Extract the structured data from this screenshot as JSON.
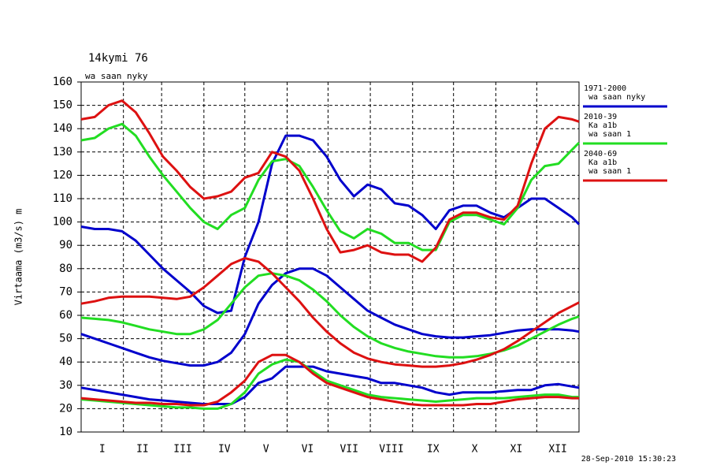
{
  "chart_data": {
    "type": "line",
    "title": "14kymi 76",
    "subtitle": "wa saan nyky",
    "y_label": "Virtaama (m3/s) m",
    "timestamp": "28-Sep-2010 15:30:23",
    "x": [
      0,
      10,
      20,
      30,
      40,
      50,
      60,
      70,
      80,
      90,
      100,
      110,
      120,
      130,
      140,
      150,
      160,
      170,
      180,
      190,
      200,
      210,
      220,
      230,
      240,
      250,
      260,
      270,
      280,
      290,
      300,
      310,
      320,
      330,
      340,
      350,
      360,
      365
    ],
    "xlim": [
      0,
      365
    ],
    "xticks": [
      0,
      31,
      59,
      90,
      120,
      151,
      181,
      212,
      243,
      273,
      304,
      334,
      365
    ],
    "month_labels": [
      "I",
      "II",
      "III",
      "IV",
      "V",
      "VI",
      "VII",
      "VIII",
      "IX",
      "X",
      "XI",
      "XII"
    ],
    "ylim": [
      10,
      160
    ],
    "yticks": [
      10,
      20,
      30,
      40,
      50,
      60,
      70,
      80,
      90,
      100,
      110,
      120,
      130,
      140,
      150,
      160
    ],
    "grid": true,
    "series": [
      {
        "name": [
          "1971-2000",
          "wa saan nyky"
        ],
        "color": "#0000cc",
        "values": [
          [
            98,
            97,
            97,
            96,
            92,
            86,
            80,
            75,
            70,
            64,
            61,
            62,
            85,
            100,
            125,
            137,
            137,
            135,
            128,
            118,
            111,
            116,
            114,
            108,
            107,
            103,
            97,
            105,
            107,
            107,
            104,
            102,
            106,
            110,
            110,
            106,
            102,
            99
          ],
          [
            52,
            50,
            48,
            46,
            44,
            42,
            40.5,
            39.5,
            38.5,
            38.5,
            40,
            44,
            52,
            65,
            73,
            78,
            80,
            80,
            77,
            72,
            67,
            62,
            59,
            56,
            54,
            52,
            51,
            50.5,
            50.5,
            51,
            51.5,
            52.5,
            53.5,
            54,
            54,
            54,
            53.5,
            53
          ],
          [
            29,
            28,
            27,
            26,
            25,
            24,
            23.5,
            23,
            22.5,
            22,
            22,
            22,
            25,
            31,
            33,
            38,
            38,
            38,
            36,
            35,
            34,
            33,
            31,
            31,
            30,
            29,
            27,
            26,
            27,
            27,
            27,
            27.5,
            28,
            28,
            30,
            30.5,
            29.5,
            29
          ]
        ]
      },
      {
        "name": [
          "2010-39",
          "Ka a1b",
          "wa saan 1"
        ],
        "color": "#22dd22",
        "values": [
          [
            135,
            136,
            140,
            142,
            137,
            128,
            120,
            113,
            106,
            100,
            97,
            103,
            106,
            118,
            126,
            127,
            124,
            115,
            105,
            96,
            93,
            97,
            95,
            91,
            91,
            88,
            88,
            100,
            103,
            103,
            101,
            99,
            106,
            118,
            124,
            125,
            131,
            134
          ],
          [
            59,
            58.5,
            58,
            57,
            55.5,
            54,
            53,
            52,
            52,
            54,
            58,
            65,
            72,
            77,
            78,
            77,
            75,
            71,
            66,
            60,
            55,
            51,
            48,
            46,
            44.5,
            43.5,
            42.5,
            42,
            42,
            42.5,
            43.5,
            45,
            47,
            50,
            53,
            56,
            58.5,
            59.5
          ],
          [
            24,
            23.5,
            23,
            22.5,
            22,
            21.5,
            21,
            20.5,
            20.5,
            20,
            20,
            22,
            27,
            35,
            39,
            41,
            40,
            36,
            32,
            30,
            28,
            26,
            25,
            24.5,
            24,
            23.5,
            23,
            23.5,
            24,
            24.5,
            24.5,
            24.5,
            25,
            25.5,
            26,
            26,
            25,
            25
          ]
        ]
      },
      {
        "name": [
          "2040-69",
          "Ka a1b",
          "wa saan 1"
        ],
        "color": "#dd1111",
        "values": [
          [
            144,
            145,
            150,
            152,
            147,
            138,
            128,
            122,
            115,
            110,
            111,
            113,
            119,
            121,
            130,
            128,
            122,
            110,
            97,
            87,
            88,
            90,
            87,
            86,
            86,
            83,
            89,
            101,
            104,
            104,
            102,
            101,
            107,
            125,
            140,
            145,
            144,
            143
          ],
          [
            65,
            66,
            67.5,
            68,
            68,
            68,
            67.5,
            67,
            68,
            72,
            77,
            82,
            84.5,
            83,
            78,
            72,
            66,
            59,
            53,
            48,
            44,
            41.5,
            40,
            39,
            38.5,
            38,
            38,
            38.5,
            39.5,
            41,
            43,
            45.5,
            49,
            53,
            57,
            61,
            64,
            65.5
          ],
          [
            24.5,
            24,
            23.5,
            23,
            22.5,
            22.5,
            22,
            22,
            21.5,
            21.5,
            23,
            27,
            32,
            40,
            43,
            43,
            40,
            35,
            31,
            29,
            27,
            25,
            24,
            23,
            22,
            21.5,
            21.5,
            21.5,
            21.5,
            22,
            22,
            23,
            24,
            24.5,
            25,
            25,
            24.5,
            24.5
          ]
        ]
      }
    ]
  }
}
